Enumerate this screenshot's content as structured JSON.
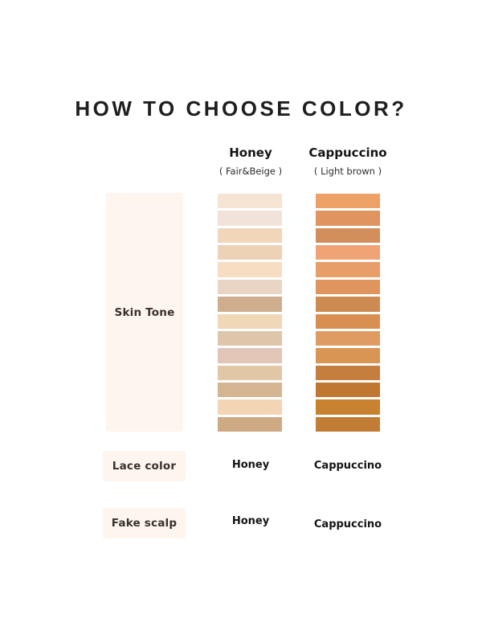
{
  "title": "HOW TO CHOOSE COLOR?",
  "columns": [
    {
      "name": "Honey",
      "subtitle": "( Fair&Beige )",
      "swatches": [
        "#f5e4d1",
        "#f2e3da",
        "#f2d6ba",
        "#eed2b6",
        "#f7ddc2",
        "#e9d5c3",
        "#cfae8d",
        "#efd7b7",
        "#dfc5aa",
        "#e1c5b7",
        "#e2c7a7",
        "#d4b491",
        "#f3d5b3",
        "#cdaa84"
      ]
    },
    {
      "name": "Cappuccino",
      "subtitle": "( Light brown )",
      "swatches": [
        "#eda166",
        "#e0945f",
        "#d28f5b",
        "#f0a475",
        "#e89e68",
        "#e1955e",
        "#cd8b51",
        "#d98f51",
        "#df9c62",
        "#d99554",
        "#c67e3e",
        "#c07731",
        "#c8812f",
        "#c17c36"
      ]
    }
  ],
  "rows": {
    "skin_tone": {
      "label": "Skin Tone"
    },
    "lace_color": {
      "label": "Lace color",
      "values": {
        "honey": "Honey",
        "cappuccino": "Cappuccino"
      }
    },
    "fake_scalp": {
      "label": "Fake scalp",
      "values": {
        "honey": "Honey",
        "cappuccino": "Cappuccino"
      }
    }
  },
  "colors": {
    "page_bg": "#ffffff",
    "panel_bg": "#fdf5ee",
    "title_text": "#1e1e20",
    "label_text": "#38322c"
  }
}
